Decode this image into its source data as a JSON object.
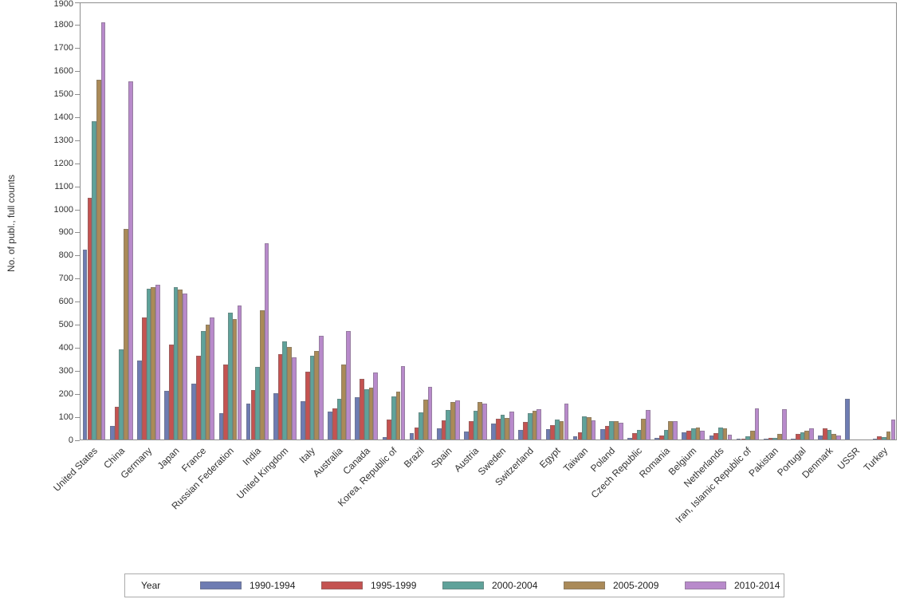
{
  "colors": {
    "axis": "#8e8e8e",
    "text": "#333333",
    "bar_outline": "#9a9a9a",
    "legend_border": "#ababab",
    "background": "#ffffff"
  },
  "legend": {
    "title": "Year"
  },
  "chart_data": {
    "type": "bar",
    "title": "",
    "xlabel": "",
    "ylabel": "No. of publ., full counts",
    "ylim": [
      0,
      1900
    ],
    "ytick_step": 100,
    "yticks": [
      0,
      100,
      200,
      300,
      400,
      500,
      600,
      700,
      800,
      900,
      1000,
      1100,
      1200,
      1300,
      1400,
      1500,
      1600,
      1700,
      1800,
      1900
    ],
    "grid": false,
    "legend_position": "bottom",
    "legend_title": "Year",
    "categories": [
      "United States",
      "China",
      "Germany",
      "Japan",
      "France",
      "Russian Federation",
      "India",
      "United Kingdom",
      "Italy",
      "Australia",
      "Canada",
      "Korea, Republic of",
      "Brazil",
      "Spain",
      "Austria",
      "Sweden",
      "Switzerland",
      "Egypt",
      "Taiwan",
      "Poland",
      "Czech Republic",
      "Romania",
      "Belgium",
      "Netherlands",
      "Iran, Islamic Republic of",
      "Pakistan",
      "Portugal",
      "Denmark",
      "USSR",
      "Turkey"
    ],
    "series": [
      {
        "name": "1990-1994",
        "color": "#6e7cb2",
        "values": [
          825,
          60,
          343,
          210,
          242,
          113,
          155,
          200,
          165,
          120,
          183,
          12,
          27,
          50,
          35,
          70,
          40,
          44,
          13,
          45,
          8,
          6,
          31,
          19,
          2,
          2,
          5,
          19,
          175,
          2
        ]
      },
      {
        "name": "1995-1999",
        "color": "#c45351",
        "values": [
          1050,
          143,
          528,
          412,
          365,
          326,
          213,
          370,
          295,
          135,
          262,
          85,
          52,
          82,
          78,
          90,
          75,
          61,
          30,
          58,
          28,
          16,
          37,
          29,
          3,
          6,
          23,
          50,
          0,
          13
        ]
      },
      {
        "name": "2000-2004",
        "color": "#5fa29a",
        "values": [
          1380,
          390,
          655,
          660,
          472,
          550,
          315,
          425,
          365,
          178,
          218,
          188,
          118,
          127,
          124,
          108,
          115,
          87,
          101,
          79,
          43,
          40,
          49,
          51,
          13,
          8,
          31,
          41,
          0,
          10
        ]
      },
      {
        "name": "2005-2009",
        "color": "#aa8a58",
        "values": [
          1560,
          915,
          660,
          650,
          500,
          522,
          560,
          400,
          385,
          325,
          226,
          208,
          172,
          163,
          164,
          92,
          123,
          79,
          97,
          79,
          91,
          80,
          51,
          47,
          38,
          25,
          37,
          23,
          0,
          35
        ]
      },
      {
        "name": "2010-2014",
        "color": "#b88acb",
        "values": [
          1810,
          1555,
          670,
          635,
          530,
          580,
          850,
          357,
          450,
          470,
          291,
          320,
          230,
          168,
          156,
          120,
          132,
          155,
          84,
          72,
          127,
          80,
          37,
          22,
          136,
          132,
          50,
          17,
          0,
          87
        ]
      }
    ]
  }
}
